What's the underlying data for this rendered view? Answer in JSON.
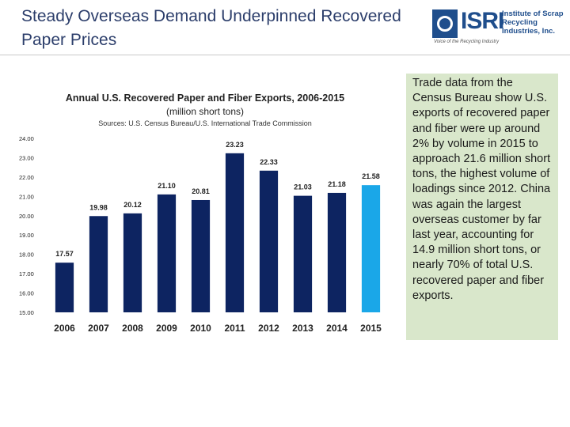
{
  "slide": {
    "title": "Steady Overseas Demand Underpinned Recovered Paper Prices"
  },
  "logo": {
    "text": "ISRI",
    "name": "Institute of Scrap Recycling Industries, Inc.",
    "tagline": "Voice of the Recycling Industry",
    "color": "#1f4e8c"
  },
  "sidebar": {
    "text": "Trade data from the Census Bureau show U.S. exports of recovered paper and fiber were up around 2% by volume in 2015 to approach 21.6 million short tons, the highest volume of loadings since 2012. China was again the largest overseas customer by far last year, accounting for 14.9 million short tons, or nearly 70% of total U.S. recovered paper and fiber exports.",
    "background": "#d9e7cb"
  },
  "chart_data": {
    "type": "bar",
    "title": "Annual U.S. Recovered Paper and Fiber Exports, 2006-2015",
    "subtitle": "(million short tons)",
    "source": "Sources: U.S. Census Bureau/U.S. International Trade Commission",
    "categories": [
      "2006",
      "2007",
      "2008",
      "2009",
      "2010",
      "2011",
      "2012",
      "2013",
      "2014",
      "2015"
    ],
    "values": [
      17.57,
      19.98,
      20.12,
      21.1,
      20.81,
      23.23,
      22.33,
      21.03,
      21.18,
      21.58
    ],
    "value_labels": [
      "17.57",
      "19.98",
      "20.12",
      "21.10",
      "20.81",
      "23.23",
      "22.33",
      "21.03",
      "21.18",
      "21.58"
    ],
    "yticks": [
      "15.00",
      "16.00",
      "17.00",
      "18.00",
      "19.00",
      "20.00",
      "21.00",
      "22.00",
      "23.00",
      "24.00"
    ],
    "ylim": [
      15,
      24
    ],
    "grid": false,
    "colors": {
      "bar": "#0d2461",
      "highlight": "#1aa7e8",
      "highlight_index": 9
    }
  }
}
